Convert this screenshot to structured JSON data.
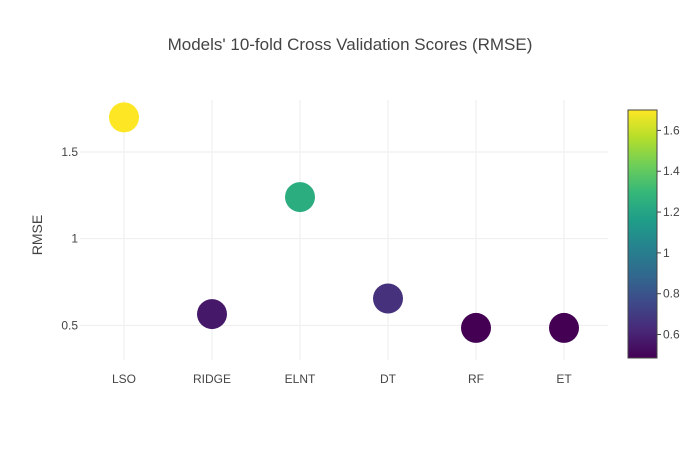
{
  "chart_data": {
    "type": "scatter",
    "title": "Models' 10-fold Cross Validation Scores (RMSE)",
    "xlabel": "",
    "ylabel": "RMSE",
    "categories": [
      "LSO",
      "RIDGE",
      "ELNT",
      "DT",
      "RF",
      "ET"
    ],
    "values": [
      1.7,
      0.565,
      1.24,
      0.655,
      0.485,
      0.485
    ],
    "ylim": [
      0.3,
      1.8
    ],
    "yticks": [
      0.5,
      1,
      1.5
    ],
    "ytick_labels": [
      "0.5",
      "1",
      "1.5"
    ],
    "grid": true,
    "colorscale": "Viridis",
    "colorbar": {
      "range": [
        0.485,
        1.7
      ],
      "ticks": [
        0.6,
        0.8,
        1.0,
        1.2,
        1.4,
        1.6
      ],
      "tick_labels": [
        "0.6",
        "0.8",
        "1",
        "1.2",
        "1.4",
        "1.6"
      ],
      "placement": "right"
    }
  }
}
